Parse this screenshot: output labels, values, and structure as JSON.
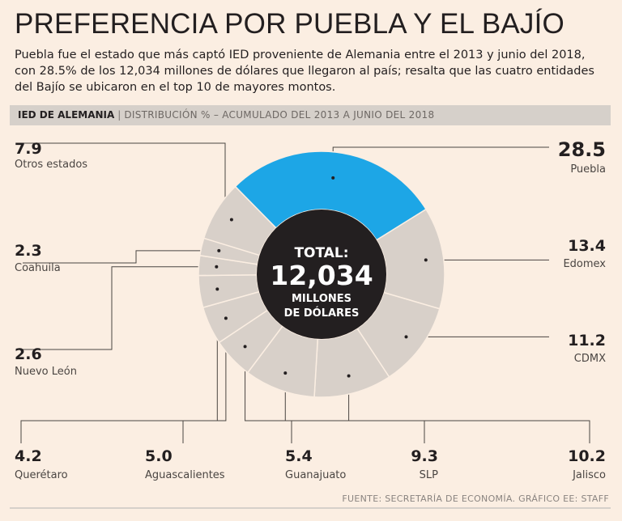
{
  "header": {
    "title": "PREFERENCIA POR PUEBLA Y EL BAJÍO",
    "subtitle": "Puebla fue el estado que más captó IED proveniente de Alemania entre el 2013 y junio del 2018, con 28.5% de los 12,034 millones de dólares que llegaron al país; resalta que las cuatro entidades del Bajío se ubicaron en el top 10 de mayores montos."
  },
  "band": {
    "label": "IED DE ALEMANIA",
    "separator": "|",
    "description": "DISTRIBUCIÓN % – ACUMULADO DEL 2013 A JUNIO DEL 2018"
  },
  "chart_data": {
    "type": "pie",
    "subtype": "donut",
    "unit": "%",
    "center": {
      "line1": "TOTAL:",
      "line2": "12,034",
      "line3": "MILLONES",
      "line4": "DE DÓLARES"
    },
    "slices": [
      {
        "label": "Puebla",
        "value": 28.5,
        "display": "28.5"
      },
      {
        "label": "Edomex",
        "value": 13.4,
        "display": "13.4"
      },
      {
        "label": "CDMX",
        "value": 11.2,
        "display": "11.2"
      },
      {
        "label": "Jalisco",
        "value": 10.2,
        "display": "10.2"
      },
      {
        "label": "SLP",
        "value": 9.3,
        "display": "9.3"
      },
      {
        "label": "Guanajuato",
        "value": 5.4,
        "display": "5.4"
      },
      {
        "label": "Aguascalientes",
        "value": 5.0,
        "display": "5.0"
      },
      {
        "label": "Querétaro",
        "value": 4.2,
        "display": "4.2"
      },
      {
        "label": "Nuevo León",
        "value": 2.6,
        "display": "2.6"
      },
      {
        "label": "Coahuila",
        "value": 2.3,
        "display": "2.3"
      },
      {
        "label": "Otros estados",
        "value": 7.9,
        "display": "7.9"
      }
    ],
    "colors": {
      "highlight": "#1da6e6",
      "other": "#d8d0c9",
      "center": "#231f20",
      "divider": "#fbeee2"
    }
  },
  "footer": {
    "source": "FUENTE: SECRETARÍA DE ECONOMÍA. GRÁFICO EE: STAFF"
  }
}
